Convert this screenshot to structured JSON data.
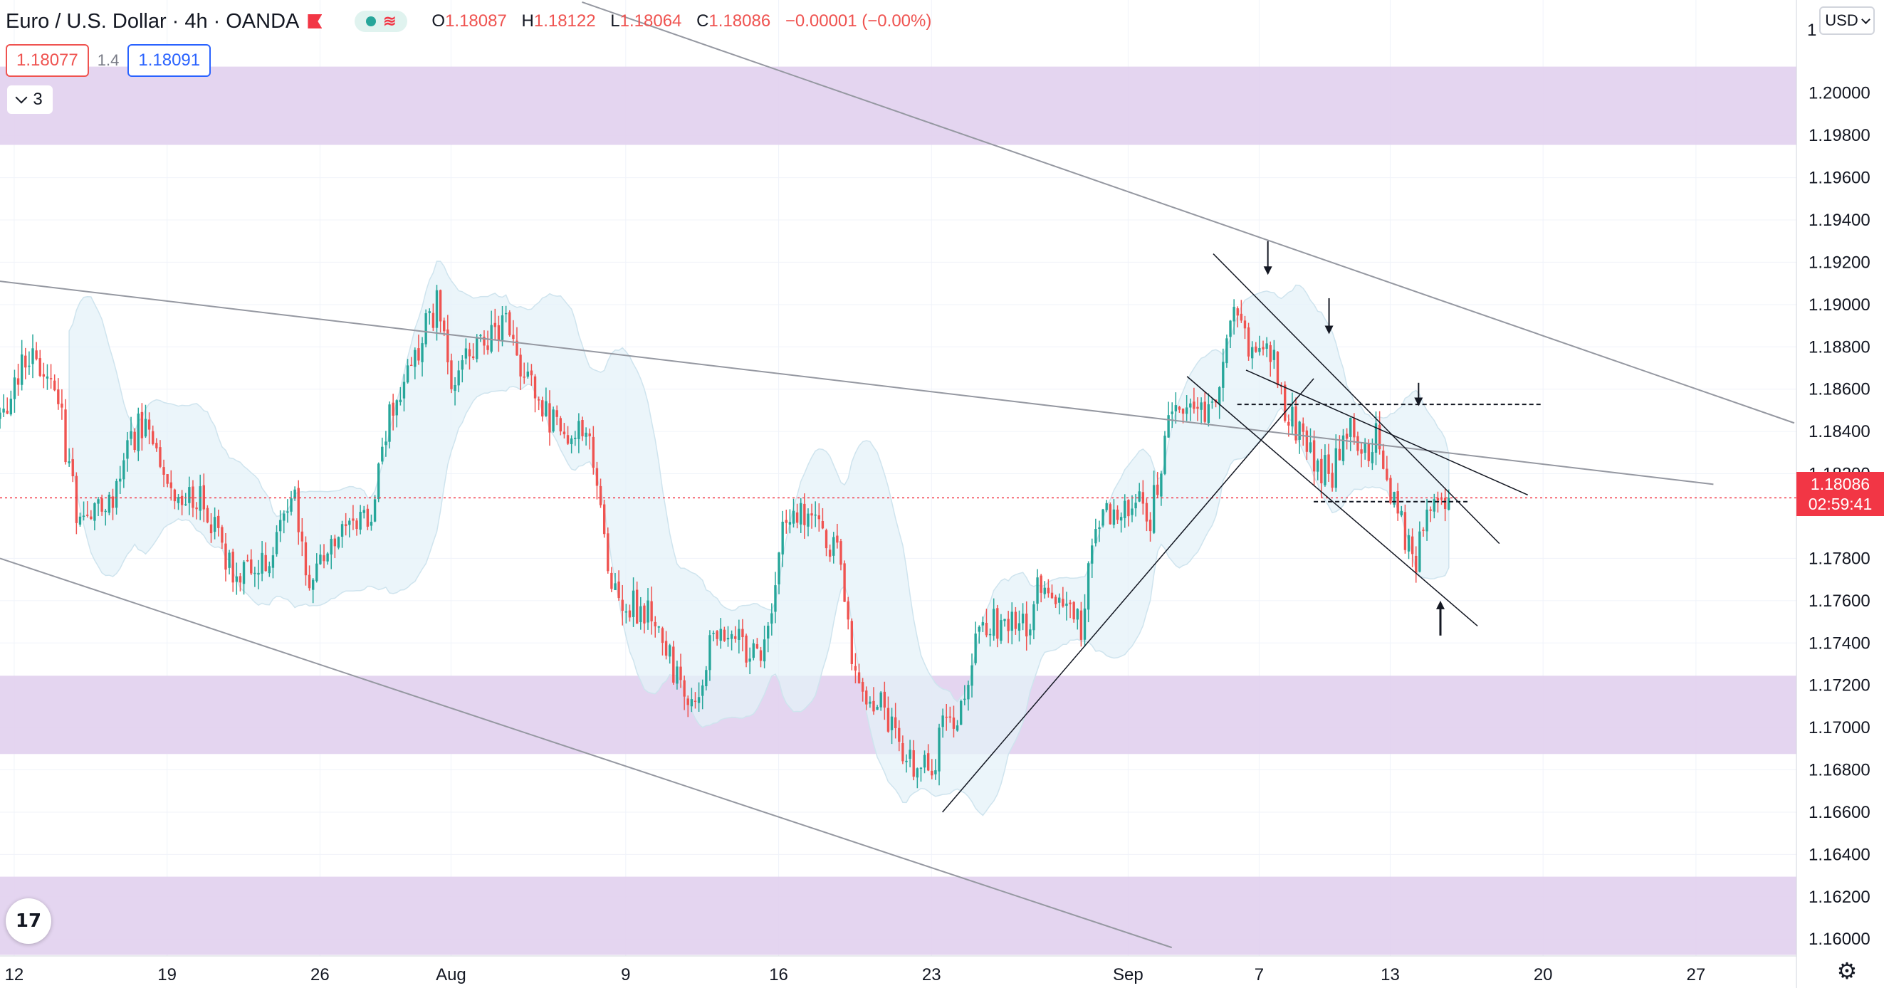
{
  "legend": {
    "symbol": "Euro / U.S. Dollar",
    "interval": "4h",
    "exchange": "OANDA",
    "open_label": "O",
    "open": "1.18087",
    "high_label": "H",
    "high": "1.18122",
    "low_label": "L",
    "low": "1.18064",
    "close_label": "C",
    "close": "1.18086",
    "change": "−0.00001 (−0.00%)",
    "visibility_icon": "eye-dot-icon",
    "indicator_icon": "wave-icon",
    "flag_icon": "flag-icon"
  },
  "quote": {
    "sell": "1.18077",
    "spread": "1.4",
    "buy": "1.18091"
  },
  "collapse": {
    "count": "3",
    "icon": "chevron-down-icon"
  },
  "currency": {
    "label": "USD"
  },
  "last_price": {
    "value": "1.18086",
    "countdown": "02:59:41"
  },
  "logo": {
    "text": "17"
  },
  "settings_icon": "gear-icon",
  "colors": {
    "up": "#26a69a",
    "down": "#ef5350",
    "zone": "#e1d0ee",
    "trendline": "#9598a1",
    "last_price": "#f23645",
    "band_fill": "#e4f2f8",
    "grid": "#f0f3fa"
  },
  "chart_data": {
    "type": "candlestick",
    "symbol": "EUR/USD",
    "timeframe": "4h",
    "y_axis": {
      "ticks": [
        "1.20000",
        "1.19800",
        "1.19600",
        "1.19400",
        "1.19200",
        "1.19000",
        "1.18800",
        "1.18600",
        "1.18400",
        "1.18200",
        "1.17800",
        "1.17600",
        "1.17400",
        "1.17200",
        "1.17000",
        "1.16800",
        "1.16600",
        "1.16400",
        "1.16200",
        "1.16000"
      ],
      "range": [
        1.1592,
        1.2044
      ]
    },
    "x_axis": {
      "ticks": [
        {
          "label": "12",
          "day": 0
        },
        {
          "label": "19",
          "day": 7
        },
        {
          "label": "26",
          "day": 14
        },
        {
          "label": "Aug",
          "day": 20
        },
        {
          "label": "9",
          "day": 28
        },
        {
          "label": "16",
          "day": 35
        },
        {
          "label": "23",
          "day": 42
        },
        {
          "label": "Sep",
          "day": 51
        },
        {
          "label": "7",
          "day": 57
        },
        {
          "label": "13",
          "day": 63
        },
        {
          "label": "20",
          "day": 70
        },
        {
          "label": "27",
          "day": 77
        }
      ],
      "range_days": [
        -0.65,
        81.6
      ]
    },
    "anchors": [
      [
        -0.65,
        1.1845
      ],
      [
        0.5,
        1.1878
      ],
      [
        2,
        1.1855
      ],
      [
        3,
        1.1792
      ],
      [
        4.5,
        1.181
      ],
      [
        5.8,
        1.1845
      ],
      [
        7,
        1.1815
      ],
      [
        8.5,
        1.1808
      ],
      [
        10,
        1.1775
      ],
      [
        11.6,
        1.178
      ],
      [
        12.8,
        1.1812
      ],
      [
        13.5,
        1.177
      ],
      [
        15,
        1.1795
      ],
      [
        16.3,
        1.18
      ],
      [
        17,
        1.184
      ],
      [
        18,
        1.187
      ],
      [
        19.4,
        1.19
      ],
      [
        20,
        1.186
      ],
      [
        21,
        1.188
      ],
      [
        22.5,
        1.189
      ],
      [
        23.5,
        1.1865
      ],
      [
        24.5,
        1.1845
      ],
      [
        25.7,
        1.184
      ],
      [
        26.5,
        1.183
      ],
      [
        27.1,
        1.178
      ],
      [
        27.7,
        1.176
      ],
      [
        28.9,
        1.1755
      ],
      [
        29.7,
        1.174
      ],
      [
        30.5,
        1.172
      ],
      [
        31.2,
        1.171
      ],
      [
        32,
        1.1742
      ],
      [
        33.2,
        1.174
      ],
      [
        34.1,
        1.1735
      ],
      [
        34.9,
        1.177
      ],
      [
        35.3,
        1.1805
      ],
      [
        36.3,
        1.1798
      ],
      [
        37.3,
        1.1785
      ],
      [
        37.8,
        1.179
      ],
      [
        38.3,
        1.1735
      ],
      [
        39,
        1.1715
      ],
      [
        39.8,
        1.171
      ],
      [
        40.5,
        1.169
      ],
      [
        41.2,
        1.1682
      ],
      [
        42,
        1.1678
      ],
      [
        42.5,
        1.1698
      ],
      [
        43.4,
        1.1705
      ],
      [
        44,
        1.174
      ],
      [
        45,
        1.175
      ],
      [
        46.4,
        1.1748
      ],
      [
        47,
        1.177
      ],
      [
        48.3,
        1.176
      ],
      [
        48.9,
        1.1748
      ],
      [
        49.4,
        1.1795
      ],
      [
        50,
        1.1802
      ],
      [
        51.2,
        1.1808
      ],
      [
        52,
        1.18
      ],
      [
        53,
        1.185
      ],
      [
        54,
        1.1845
      ],
      [
        55.2,
        1.186
      ],
      [
        55.9,
        1.1898
      ],
      [
        56.6,
        1.188
      ],
      [
        57.6,
        1.1878
      ],
      [
        58.2,
        1.185
      ],
      [
        59.1,
        1.1832
      ],
      [
        60.3,
        1.1818
      ],
      [
        61.1,
        1.1843
      ],
      [
        61.8,
        1.183
      ],
      [
        62.4,
        1.184
      ],
      [
        63,
        1.181
      ],
      [
        63.5,
        1.1795
      ],
      [
        64.1,
        1.1775
      ],
      [
        64.6,
        1.1805
      ],
      [
        65.3,
        1.1808
      ],
      [
        65.8,
        1.1808
      ]
    ],
    "zones": [
      {
        "from": 1.19755,
        "to": 1.20125
      },
      {
        "from": 1.16875,
        "to": 1.17245
      },
      {
        "from": 1.15925,
        "to": 1.16295
      }
    ],
    "trendlines": [
      {
        "from": [
          26.0,
          1.2043
        ],
        "to": [
          81.5,
          1.1844
        ]
      },
      {
        "from": [
          -0.65,
          1.1911
        ],
        "to": [
          77.8,
          1.1815
        ]
      },
      {
        "from": [
          -0.65,
          1.178
        ],
        "to": [
          53.0,
          1.1596
        ]
      },
      {
        "from": [
          42.5,
          1.166
        ],
        "to": [
          59.5,
          1.1865
        ]
      },
      {
        "from": [
          56.4,
          1.1869
        ],
        "to": [
          69.3,
          1.181
        ]
      },
      {
        "from": [
          54.9,
          1.1924
        ],
        "to": [
          68.0,
          1.1787
        ]
      },
      {
        "from": [
          53.7,
          1.1866
        ],
        "to": [
          67.0,
          1.1748
        ]
      }
    ],
    "levels": [
      {
        "from": 56.0,
        "to": 70.0,
        "value": 1.18528
      },
      {
        "from": 59.5,
        "to": 66.6,
        "value": 1.18068
      }
    ],
    "arrows": [
      {
        "day": 57.4,
        "from": 1.193,
        "to": 1.1914,
        "dir": "down"
      },
      {
        "day": 60.2,
        "from": 1.1903,
        "to": 1.1886,
        "dir": "down"
      },
      {
        "day": 64.3,
        "from": 1.1863,
        "to": 1.1852,
        "dir": "down"
      },
      {
        "day": 65.3,
        "from": 1.17435,
        "to": 1.176,
        "dir": "up"
      }
    ],
    "last_price": 1.18086
  }
}
